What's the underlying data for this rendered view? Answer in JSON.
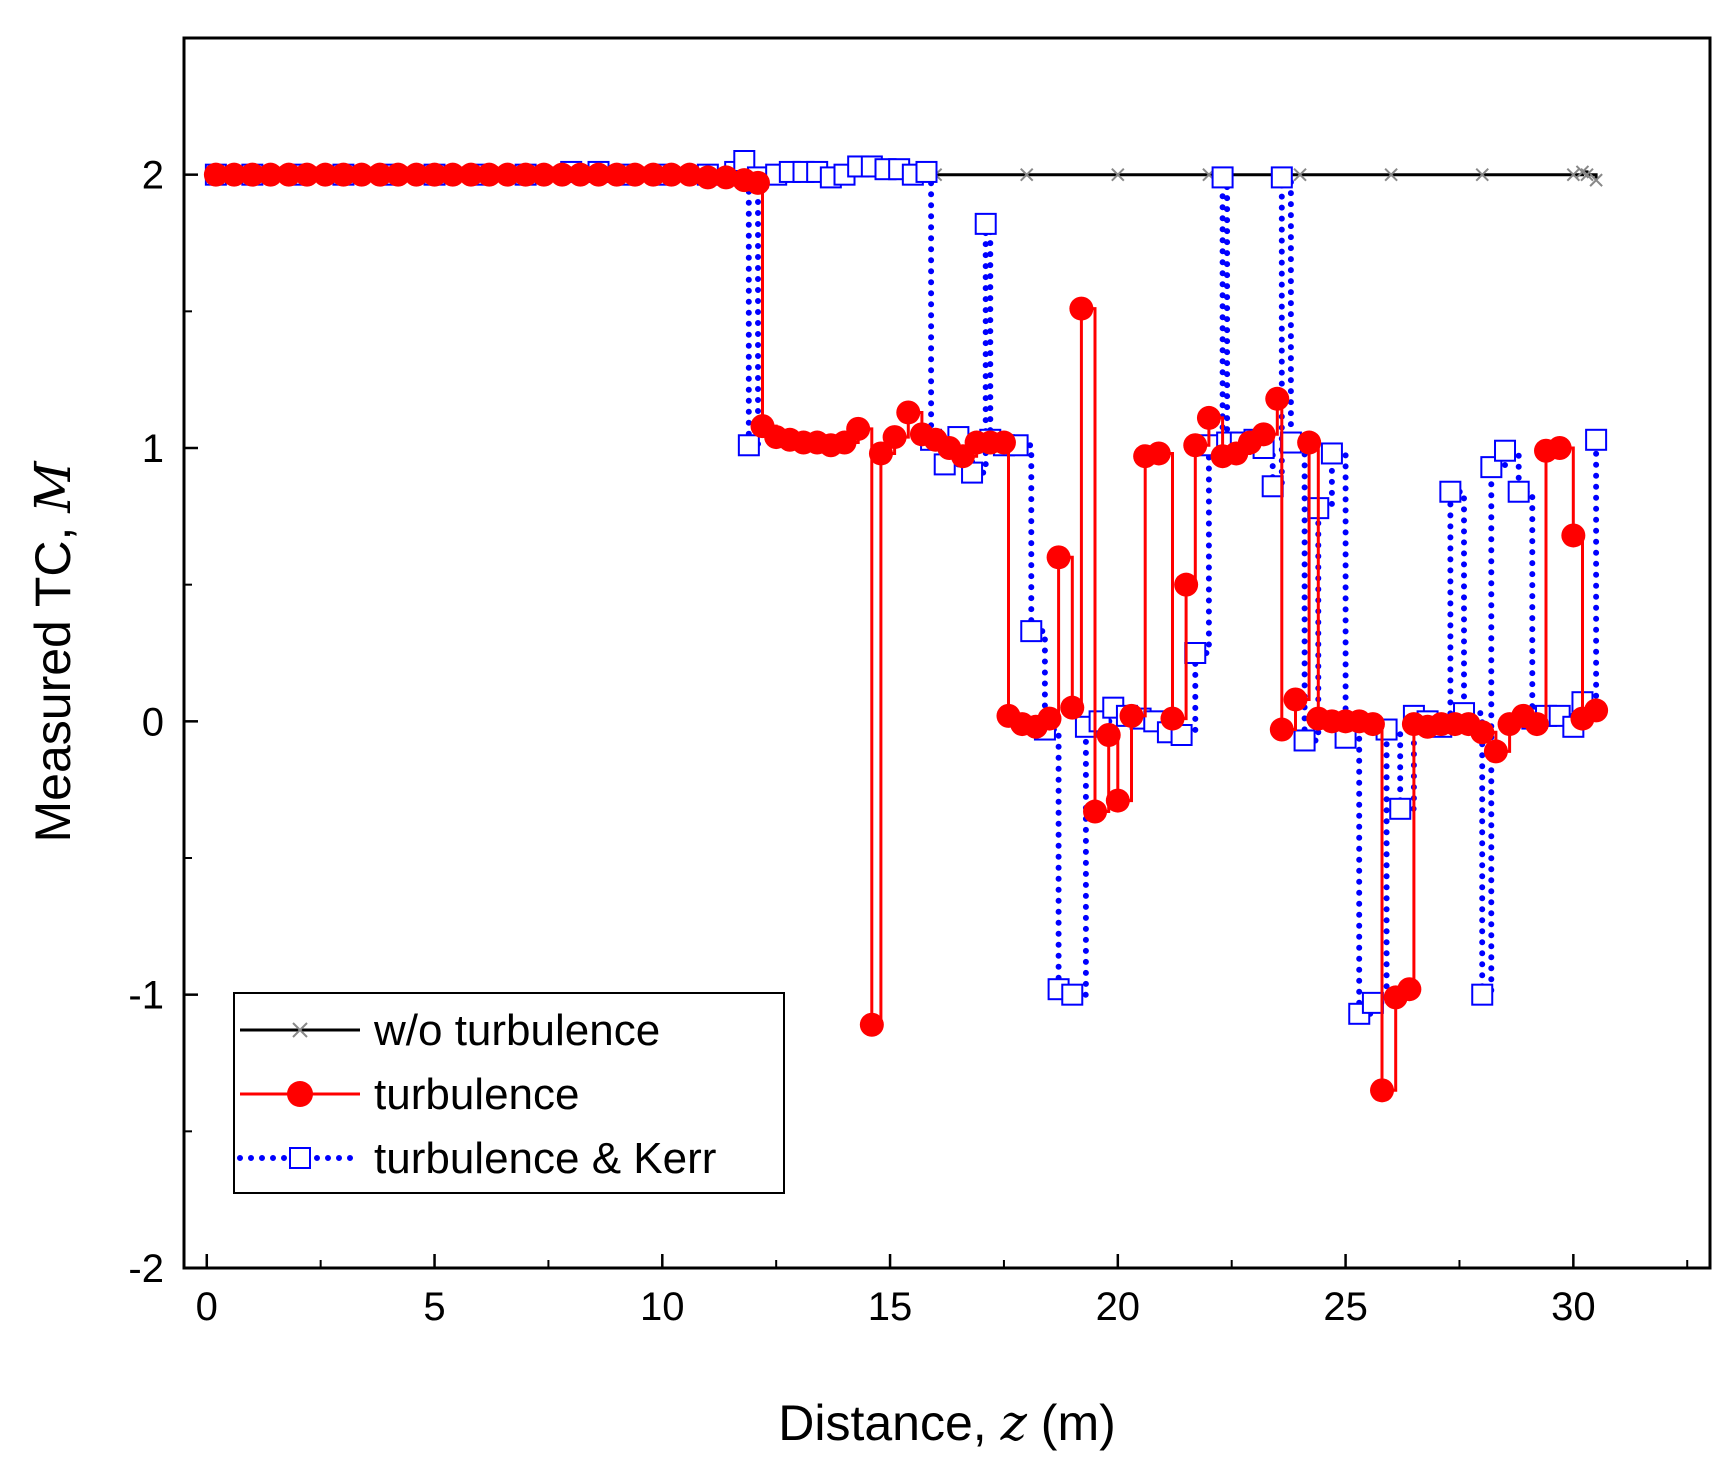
{
  "chart_data": {
    "type": "line",
    "title": "",
    "xlabel": "Distance, ",
    "xlabel_var": "z",
    "xlabel_unit": " (m)",
    "ylabel": "Measured TC, ",
    "ylabel_var": "M",
    "xlim": [
      -0.5,
      33
    ],
    "ylim": [
      -2,
      2.5
    ],
    "xticks": [
      0,
      5,
      10,
      15,
      20,
      25,
      30
    ],
    "yticks": [
      -2,
      -1,
      0,
      1,
      2
    ],
    "xtick_labels": [
      "0",
      "5",
      "10",
      "15",
      "20",
      "25",
      "30"
    ],
    "ytick_labels": [
      "-2",
      "-1",
      "0",
      "1",
      "2"
    ],
    "legend_position": "bottom-left",
    "series": [
      {
        "name": "w/o turbulence",
        "color": "#000000",
        "marker": "x",
        "line": "solid",
        "points": [
          [
            0.2,
            2.0
          ],
          [
            2,
            2.0
          ],
          [
            4,
            2.0
          ],
          [
            6,
            2.0
          ],
          [
            8,
            2.0
          ],
          [
            10,
            2.0
          ],
          [
            12,
            2.0
          ],
          [
            14,
            2.0
          ],
          [
            16,
            2.0
          ],
          [
            18,
            2.0
          ],
          [
            20,
            2.0
          ],
          [
            22,
            2.0
          ],
          [
            24,
            2.0
          ],
          [
            26,
            2.0
          ],
          [
            28,
            2.0
          ],
          [
            30,
            2.0
          ],
          [
            30.2,
            2.01
          ],
          [
            30.3,
            2.0
          ],
          [
            30.5,
            1.98
          ]
        ]
      },
      {
        "name": "turbulence",
        "color": "#ff0000",
        "marker": "circle",
        "line": "solid",
        "points": [
          [
            0.2,
            2.0
          ],
          [
            0.6,
            2.0
          ],
          [
            1.0,
            2.0
          ],
          [
            1.4,
            2.0
          ],
          [
            1.8,
            2.0
          ],
          [
            2.2,
            2.0
          ],
          [
            2.6,
            2.0
          ],
          [
            3.0,
            2.0
          ],
          [
            3.4,
            2.0
          ],
          [
            3.8,
            2.0
          ],
          [
            4.2,
            2.0
          ],
          [
            4.6,
            2.0
          ],
          [
            5.0,
            2.0
          ],
          [
            5.4,
            2.0
          ],
          [
            5.8,
            2.0
          ],
          [
            6.2,
            2.0
          ],
          [
            6.6,
            2.0
          ],
          [
            7.0,
            2.0
          ],
          [
            7.4,
            2.0
          ],
          [
            7.8,
            2.0
          ],
          [
            8.2,
            2.0
          ],
          [
            8.6,
            2.0
          ],
          [
            9.0,
            2.0
          ],
          [
            9.4,
            2.0
          ],
          [
            9.8,
            2.0
          ],
          [
            10.2,
            2.0
          ],
          [
            10.6,
            2.0
          ],
          [
            11.0,
            1.99
          ],
          [
            11.4,
            1.99
          ],
          [
            11.8,
            1.98
          ],
          [
            12.1,
            1.97
          ],
          [
            12.2,
            1.08
          ],
          [
            12.5,
            1.04
          ],
          [
            12.8,
            1.03
          ],
          [
            13.1,
            1.02
          ],
          [
            13.4,
            1.02
          ],
          [
            13.7,
            1.01
          ],
          [
            14.0,
            1.02
          ],
          [
            14.3,
            1.07
          ],
          [
            14.6,
            -1.11
          ],
          [
            14.8,
            0.98
          ],
          [
            15.1,
            1.04
          ],
          [
            15.4,
            1.13
          ],
          [
            15.7,
            1.05
          ],
          [
            16.0,
            1.03
          ],
          [
            16.3,
            1.0
          ],
          [
            16.6,
            0.97
          ],
          [
            16.9,
            1.02
          ],
          [
            17.2,
            1.02
          ],
          [
            17.5,
            1.02
          ],
          [
            17.6,
            0.02
          ],
          [
            17.9,
            -0.01
          ],
          [
            18.2,
            -0.02
          ],
          [
            18.5,
            0.01
          ],
          [
            18.7,
            0.6
          ],
          [
            19.0,
            0.05
          ],
          [
            19.2,
            1.51
          ],
          [
            19.5,
            -0.33
          ],
          [
            19.8,
            -0.05
          ],
          [
            20.0,
            -0.29
          ],
          [
            20.3,
            0.02
          ],
          [
            20.6,
            0.97
          ],
          [
            20.9,
            0.98
          ],
          [
            21.2,
            0.01
          ],
          [
            21.5,
            0.5
          ],
          [
            21.7,
            1.01
          ],
          [
            22.0,
            1.11
          ],
          [
            22.3,
            0.97
          ],
          [
            22.6,
            0.98
          ],
          [
            22.9,
            1.02
          ],
          [
            23.2,
            1.05
          ],
          [
            23.5,
            1.18
          ],
          [
            23.6,
            -0.03
          ],
          [
            23.9,
            0.08
          ],
          [
            24.2,
            1.02
          ],
          [
            24.4,
            0.01
          ],
          [
            24.7,
            0.0
          ],
          [
            25.0,
            0.0
          ],
          [
            25.3,
            0.0
          ],
          [
            25.6,
            -0.01
          ],
          [
            25.8,
            -1.35
          ],
          [
            26.1,
            -1.01
          ],
          [
            26.4,
            -0.98
          ],
          [
            26.5,
            -0.01
          ],
          [
            26.8,
            -0.02
          ],
          [
            27.1,
            -0.01
          ],
          [
            27.4,
            -0.01
          ],
          [
            27.7,
            -0.01
          ],
          [
            28.0,
            -0.04
          ],
          [
            28.3,
            -0.11
          ],
          [
            28.6,
            -0.01
          ],
          [
            28.9,
            0.02
          ],
          [
            29.2,
            -0.01
          ],
          [
            29.4,
            0.99
          ],
          [
            29.7,
            1.0
          ],
          [
            30.0,
            0.68
          ],
          [
            30.2,
            0.01
          ],
          [
            30.5,
            0.04
          ]
        ]
      },
      {
        "name": "turbulence & Kerr",
        "color": "#0000ff",
        "marker": "square",
        "line": "dotted",
        "points": [
          [
            0.2,
            2.0
          ],
          [
            1.0,
            2.0
          ],
          [
            2.0,
            2.0
          ],
          [
            3.0,
            2.0
          ],
          [
            4.0,
            2.0
          ],
          [
            5.0,
            2.0
          ],
          [
            6.0,
            2.0
          ],
          [
            7.0,
            2.0
          ],
          [
            8.0,
            2.01
          ],
          [
            8.6,
            2.01
          ],
          [
            9.2,
            2.0
          ],
          [
            10.0,
            2.0
          ],
          [
            11.0,
            2.0
          ],
          [
            11.6,
            2.01
          ],
          [
            11.8,
            2.05
          ],
          [
            11.9,
            1.01
          ],
          [
            12.1,
            1.99
          ],
          [
            12.5,
            2.0
          ],
          [
            12.8,
            2.01
          ],
          [
            13.1,
            2.01
          ],
          [
            13.4,
            2.01
          ],
          [
            13.7,
            1.99
          ],
          [
            14.0,
            2.0
          ],
          [
            14.3,
            2.03
          ],
          [
            14.6,
            2.03
          ],
          [
            14.9,
            2.02
          ],
          [
            15.2,
            2.02
          ],
          [
            15.5,
            2.0
          ],
          [
            15.8,
            2.01
          ],
          [
            15.9,
            1.03
          ],
          [
            16.2,
            0.94
          ],
          [
            16.5,
            1.04
          ],
          [
            16.8,
            0.91
          ],
          [
            17.1,
            1.82
          ],
          [
            17.2,
            1.03
          ],
          [
            17.5,
            1.01
          ],
          [
            17.8,
            1.01
          ],
          [
            18.1,
            0.33
          ],
          [
            18.4,
            -0.03
          ],
          [
            18.7,
            -0.98
          ],
          [
            19.0,
            -1.0
          ],
          [
            19.3,
            -0.02
          ],
          [
            19.6,
            0.0
          ],
          [
            19.9,
            0.05
          ],
          [
            20.2,
            0.02
          ],
          [
            20.5,
            0.01
          ],
          [
            20.8,
            0.0
          ],
          [
            21.1,
            -0.04
          ],
          [
            21.4,
            -0.05
          ],
          [
            21.7,
            0.25
          ],
          [
            22.0,
            1.01
          ],
          [
            22.3,
            1.99
          ],
          [
            22.4,
            1.02
          ],
          [
            22.7,
            1.02
          ],
          [
            23.0,
            1.03
          ],
          [
            23.2,
            1.0
          ],
          [
            23.4,
            0.86
          ],
          [
            23.6,
            1.99
          ],
          [
            23.8,
            1.02
          ],
          [
            24.1,
            -0.07
          ],
          [
            24.4,
            0.78
          ],
          [
            24.7,
            0.98
          ],
          [
            25.0,
            -0.06
          ],
          [
            25.3,
            -1.07
          ],
          [
            25.6,
            -1.03
          ],
          [
            25.9,
            -0.03
          ],
          [
            26.2,
            -0.32
          ],
          [
            26.5,
            0.02
          ],
          [
            26.8,
            0.0
          ],
          [
            27.1,
            -0.02
          ],
          [
            27.3,
            0.84
          ],
          [
            27.6,
            0.03
          ],
          [
            28.0,
            -1.0
          ],
          [
            28.2,
            0.93
          ],
          [
            28.5,
            0.99
          ],
          [
            28.8,
            0.84
          ],
          [
            29.1,
            0.01
          ],
          [
            29.4,
            0.02
          ],
          [
            29.7,
            0.02
          ],
          [
            30.0,
            -0.02
          ],
          [
            30.2,
            0.07
          ],
          [
            30.5,
            1.03
          ]
        ]
      }
    ]
  }
}
